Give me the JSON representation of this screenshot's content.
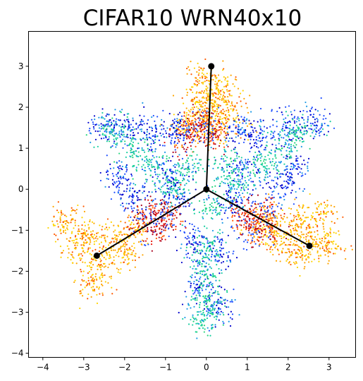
{
  "chart_data": {
    "type": "scatter",
    "title": "CIFAR10 WRN40x10",
    "xlabel": "",
    "ylabel": "",
    "xlim": [
      -4.35,
      3.65
    ],
    "ylim": [
      -4.1,
      3.85
    ],
    "x_ticks": [
      -4,
      -3,
      -2,
      -1,
      0,
      1,
      2,
      3
    ],
    "y_ticks": [
      -4,
      -3,
      -2,
      -1,
      0,
      1,
      2,
      3
    ],
    "grid": false,
    "legend": "none",
    "colormap": [
      "#0000cc",
      "#1f4fff",
      "#1d9be6",
      "#19cfa0",
      "#27d67e",
      "#ffd400",
      "#ffa500",
      "#ff5a00",
      "#e8170f",
      "#a8001e"
    ],
    "projection_vectors": {
      "origin": [
        0,
        0
      ],
      "endpoints": [
        {
          "x": 0.12,
          "y": 3.0
        },
        {
          "x": -2.68,
          "y": -1.62
        },
        {
          "x": 2.52,
          "y": -1.38
        }
      ],
      "color": "#000000"
    },
    "series": [
      {
        "color_group": "warm",
        "points": [
          {
            "x": 0.05,
            "y": 2.2
          },
          {
            "x": -0.2,
            "y": 1.9
          },
          {
            "x": 0.35,
            "y": 2.4
          },
          {
            "x": -0.45,
            "y": 1.55
          },
          {
            "x": 0.1,
            "y": 1.4
          },
          {
            "x": 0.55,
            "y": 1.7
          },
          {
            "x": -0.1,
            "y": 2.75
          },
          {
            "x": 0.3,
            "y": 2.05
          },
          {
            "x": -2.9,
            "y": -1.1
          },
          {
            "x": -3.2,
            "y": -1.45
          },
          {
            "x": -2.6,
            "y": -1.85
          },
          {
            "x": -2.3,
            "y": -1.2
          },
          {
            "x": -3.5,
            "y": -0.8
          },
          {
            "x": -2.0,
            "y": -1.6
          },
          {
            "x": -2.75,
            "y": -2.3
          },
          {
            "x": -1.7,
            "y": -1.0
          },
          {
            "x": 2.2,
            "y": -0.85
          },
          {
            "x": 2.55,
            "y": -1.15
          },
          {
            "x": 1.9,
            "y": -1.3
          },
          {
            "x": 2.8,
            "y": -0.6
          },
          {
            "x": 1.6,
            "y": -0.7
          },
          {
            "x": 2.35,
            "y": -1.6
          },
          {
            "x": 3.0,
            "y": -1.3
          },
          {
            "x": 1.45,
            "y": -1.05
          }
        ]
      },
      {
        "color_group": "red",
        "points": [
          {
            "x": -0.3,
            "y": 1.45
          },
          {
            "x": 0.2,
            "y": 1.35
          },
          {
            "x": 0.0,
            "y": 1.6
          },
          {
            "x": -0.55,
            "y": 1.25
          },
          {
            "x": -1.1,
            "y": -0.75
          },
          {
            "x": -1.35,
            "y": -1.0
          },
          {
            "x": -0.95,
            "y": -0.55
          },
          {
            "x": -1.5,
            "y": -0.65
          },
          {
            "x": 1.05,
            "y": -0.85
          },
          {
            "x": 1.3,
            "y": -1.05
          },
          {
            "x": 0.95,
            "y": -0.6
          },
          {
            "x": 1.5,
            "y": -0.55
          }
        ]
      },
      {
        "color_group": "blue",
        "points": [
          {
            "x": -0.8,
            "y": 1.5
          },
          {
            "x": -1.3,
            "y": 1.3
          },
          {
            "x": 0.8,
            "y": 1.45
          },
          {
            "x": 1.3,
            "y": 1.25
          },
          {
            "x": -1.0,
            "y": 0.4
          },
          {
            "x": -0.7,
            "y": -0.2
          },
          {
            "x": 0.9,
            "y": 0.5
          },
          {
            "x": 0.65,
            "y": -0.3
          },
          {
            "x": -1.8,
            "y": -0.2
          },
          {
            "x": -2.1,
            "y": 0.3
          },
          {
            "x": 1.85,
            "y": 0.1
          },
          {
            "x": 2.2,
            "y": 0.5
          },
          {
            "x": -0.3,
            "y": -1.3
          },
          {
            "x": 0.35,
            "y": -1.5
          },
          {
            "x": -0.2,
            "y": -2.4
          },
          {
            "x": 0.3,
            "y": -2.9
          },
          {
            "x": -1.9,
            "y": 1.5
          },
          {
            "x": 1.95,
            "y": 1.55
          },
          {
            "x": 2.6,
            "y": 1.6
          },
          {
            "x": -2.5,
            "y": 1.55
          }
        ]
      },
      {
        "color_group": "green",
        "points": [
          {
            "x": -2.3,
            "y": 1.45
          },
          {
            "x": -1.8,
            "y": 1.05
          },
          {
            "x": -1.4,
            "y": 0.6
          },
          {
            "x": -0.8,
            "y": 0.1
          },
          {
            "x": 2.3,
            "y": 1.4
          },
          {
            "x": 1.85,
            "y": 1.0
          },
          {
            "x": 1.4,
            "y": 0.55
          },
          {
            "x": 0.8,
            "y": 0.1
          },
          {
            "x": 0.0,
            "y": -1.5
          },
          {
            "x": -0.05,
            "y": -2.1
          },
          {
            "x": 0.05,
            "y": -2.7
          },
          {
            "x": -0.1,
            "y": -3.2
          },
          {
            "x": 0.5,
            "y": 0.6
          },
          {
            "x": -0.5,
            "y": 0.5
          },
          {
            "x": 0.1,
            "y": -0.5
          }
        ]
      }
    ]
  }
}
